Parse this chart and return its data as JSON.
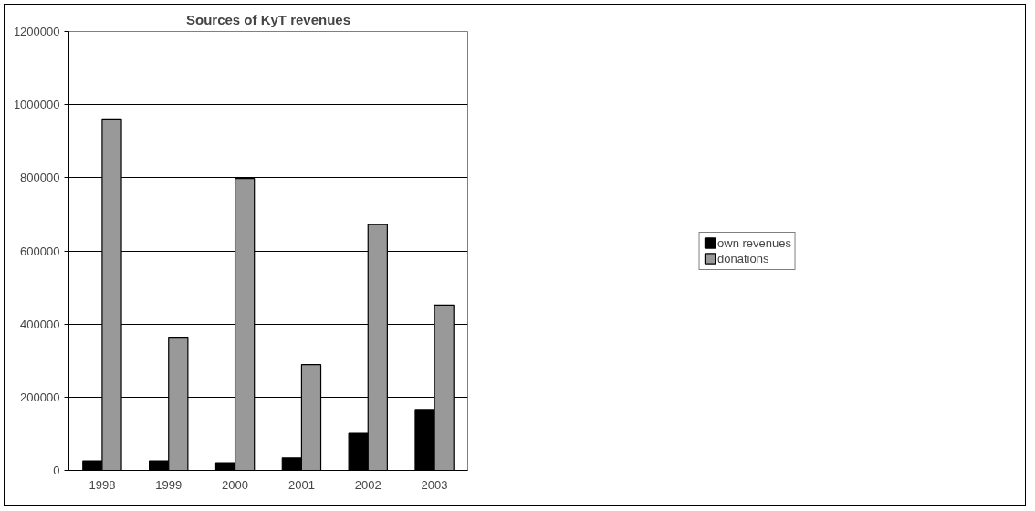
{
  "chart_data": {
    "type": "bar",
    "title": "Sources of KyT revenues",
    "categories": [
      "1998",
      "1999",
      "2000",
      "2001",
      "2002",
      "2003"
    ],
    "series": [
      {
        "name": "own revenues",
        "color": "#000000",
        "values": [
          26000,
          26000,
          21000,
          34000,
          103000,
          166000
        ]
      },
      {
        "name": "donations",
        "color": "#999999",
        "values": [
          961000,
          364000,
          798000,
          289000,
          672000,
          452000
        ]
      }
    ],
    "ylim": [
      0,
      1200000
    ],
    "yticks": [
      0,
      200000,
      400000,
      600000,
      800000,
      1000000,
      1200000
    ],
    "grid": "y",
    "legend": "right"
  }
}
